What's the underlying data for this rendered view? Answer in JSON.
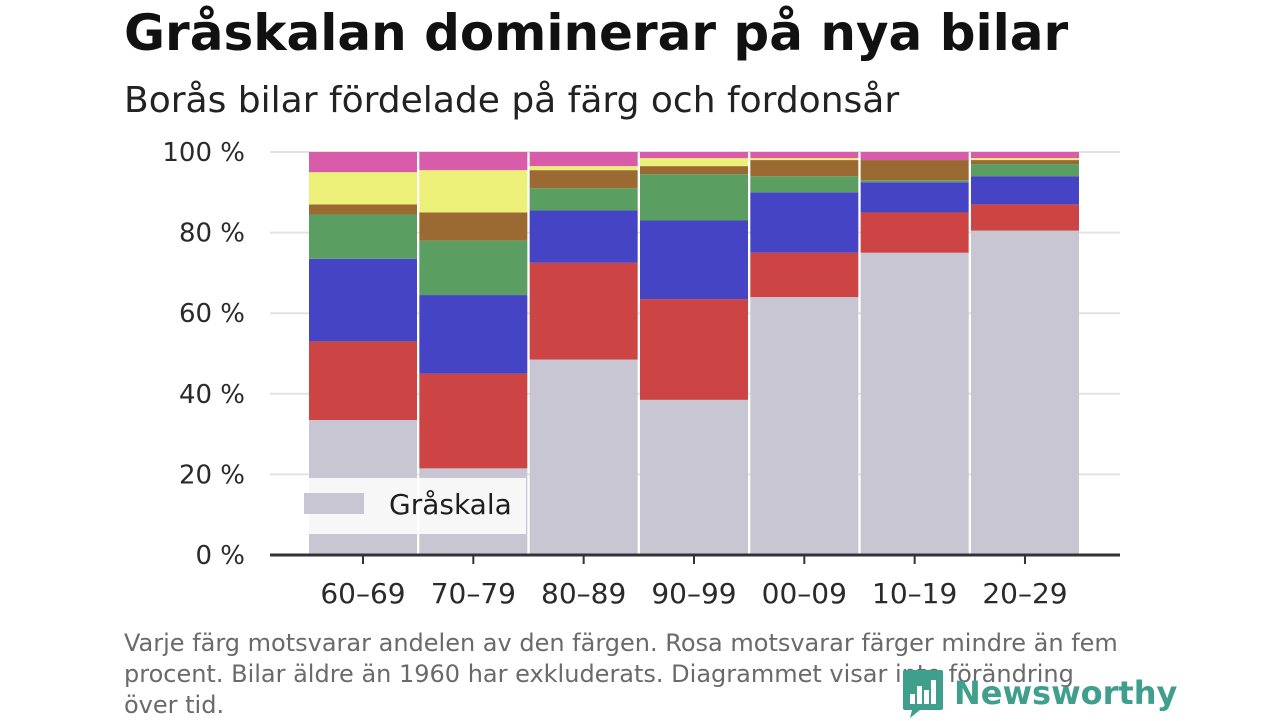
{
  "header": {
    "title": "Gråskalan dominerar på nya bilar",
    "subtitle": "Borås bilar fördelade på färg och fordonsår"
  },
  "footnote": "Varje färg motsvarar andelen av den färgen. Rosa motsvarar färger mindre än fem procent. Bilar äldre än 1960 har exkluderats. Diagrammet visar inte förändring över tid.",
  "brand": {
    "name": "Newsworthy",
    "icon": "newsworthy-logo-icon",
    "color": "#3f9e8c"
  },
  "chart_data": {
    "type": "bar",
    "stacked": true,
    "normalized": true,
    "categories": [
      "60–69",
      "70–79",
      "80–89",
      "90–99",
      "00–09",
      "10–19",
      "20–29"
    ],
    "yticks": [
      "0 %",
      "20 %",
      "40 %",
      "60 %",
      "80 %",
      "100 %"
    ],
    "ylim": [
      0,
      100
    ],
    "grid": true,
    "legend": {
      "position": "bottom-left",
      "visible_entries": [
        "Gråskala"
      ]
    },
    "series": [
      {
        "name": "Gråskala",
        "color": "#c8c6d2",
        "values": [
          33.5,
          21.5,
          48.5,
          38.5,
          64.0,
          75.0,
          80.5
        ]
      },
      {
        "color": "#cc4444",
        "values": [
          19.5,
          23.5,
          24.0,
          25.0,
          11.0,
          10.0,
          6.5
        ]
      },
      {
        "color": "#4444c4",
        "values": [
          20.5,
          19.5,
          13.0,
          19.5,
          15.0,
          7.5,
          7.0
        ]
      },
      {
        "color": "#5a9e62",
        "values": [
          11.0,
          13.5,
          5.5,
          11.5,
          4.0,
          0.5,
          3.0
        ]
      },
      {
        "color": "#9b6a33",
        "values": [
          2.5,
          7.0,
          4.5,
          2.0,
          4.0,
          5.0,
          1.0
        ]
      },
      {
        "color": "#ecef78",
        "values": [
          8.0,
          10.5,
          1.0,
          2.0,
          0.5,
          0.0,
          0.5
        ]
      },
      {
        "color": "#d85caa",
        "values": [
          5.0,
          4.5,
          3.5,
          1.5,
          1.5,
          2.0,
          1.5
        ]
      }
    ]
  }
}
